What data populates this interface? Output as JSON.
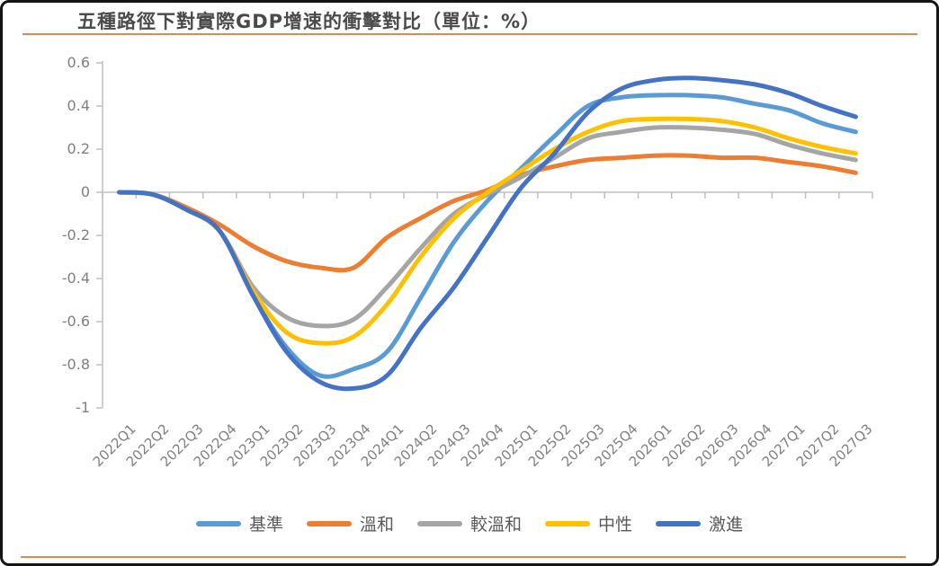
{
  "chart": {
    "title": "五種路徑下對實際GDP增速的衝擊對比（單位：%）"
  },
  "chart_data": {
    "type": "line",
    "title": "五種路徑下對實際GDP增速的衝擊對比（單位：%）",
    "unit": "%",
    "smooth": true,
    "grid": false,
    "legend_position": "bottom",
    "ylim": [
      -1,
      0.6
    ],
    "y_tick_labels": [
      "0.6",
      "0.4",
      "0.2",
      "0",
      "-0.2",
      "-0.4",
      "-0.6",
      "-0.8",
      "-1"
    ],
    "y_ticks": [
      0.6,
      0.4,
      0.2,
      0,
      -0.2,
      -0.4,
      -0.6,
      -0.8,
      -1
    ],
    "categories": [
      "2022Q1",
      "2022Q2",
      "2022Q3",
      "2022Q4",
      "2023Q1",
      "2023Q2",
      "2023Q3",
      "2023Q4",
      "2024Q1",
      "2024Q2",
      "2024Q3",
      "2024Q4",
      "2025Q1",
      "2025Q2",
      "2025Q3",
      "2025Q4",
      "2026Q1",
      "2026Q2",
      "2026Q3",
      "2026Q4",
      "2027Q1",
      "2027Q2",
      "2027Q3"
    ],
    "series": [
      {
        "id": "baseline",
        "name": "基準",
        "color": "#5B9BD5",
        "values": [
          0,
          -0.01,
          -0.08,
          -0.18,
          -0.48,
          -0.72,
          -0.85,
          -0.82,
          -0.74,
          -0.49,
          -0.23,
          -0.04,
          0.11,
          0.26,
          0.4,
          0.44,
          0.45,
          0.45,
          0.44,
          0.41,
          0.38,
          0.32,
          0.28
        ]
      },
      {
        "id": "moderate",
        "name": "溫和",
        "color": "#ED7D31",
        "values": [
          0,
          -0.01,
          -0.07,
          -0.15,
          -0.25,
          -0.32,
          -0.35,
          -0.35,
          -0.21,
          -0.12,
          -0.04,
          0.01,
          0.08,
          0.12,
          0.15,
          0.16,
          0.17,
          0.17,
          0.16,
          0.16,
          0.14,
          0.12,
          0.09
        ]
      },
      {
        "id": "relatively-moderate",
        "name": "較溫和",
        "color": "#A5A5A5",
        "values": [
          0,
          -0.01,
          -0.08,
          -0.18,
          -0.44,
          -0.58,
          -0.62,
          -0.59,
          -0.44,
          -0.26,
          -0.1,
          -0.01,
          0.07,
          0.16,
          0.25,
          0.28,
          0.3,
          0.3,
          0.29,
          0.27,
          0.22,
          0.18,
          0.15
        ]
      },
      {
        "id": "neutral",
        "name": "中性",
        "color": "#FFC000",
        "values": [
          0,
          -0.01,
          -0.08,
          -0.18,
          -0.46,
          -0.65,
          -0.7,
          -0.67,
          -0.52,
          -0.3,
          -0.12,
          0.0,
          0.1,
          0.2,
          0.28,
          0.33,
          0.34,
          0.34,
          0.33,
          0.3,
          0.25,
          0.21,
          0.18
        ]
      },
      {
        "id": "aggressive",
        "name": "激進",
        "color": "#4472C4",
        "values": [
          0,
          -0.01,
          -0.08,
          -0.18,
          -0.48,
          -0.74,
          -0.88,
          -0.91,
          -0.85,
          -0.63,
          -0.44,
          -0.21,
          0.02,
          0.18,
          0.37,
          0.48,
          0.52,
          0.53,
          0.52,
          0.5,
          0.46,
          0.4,
          0.35
        ]
      }
    ],
    "axis_color": "#bfbfbf",
    "label_color": "#7f7f7f"
  }
}
